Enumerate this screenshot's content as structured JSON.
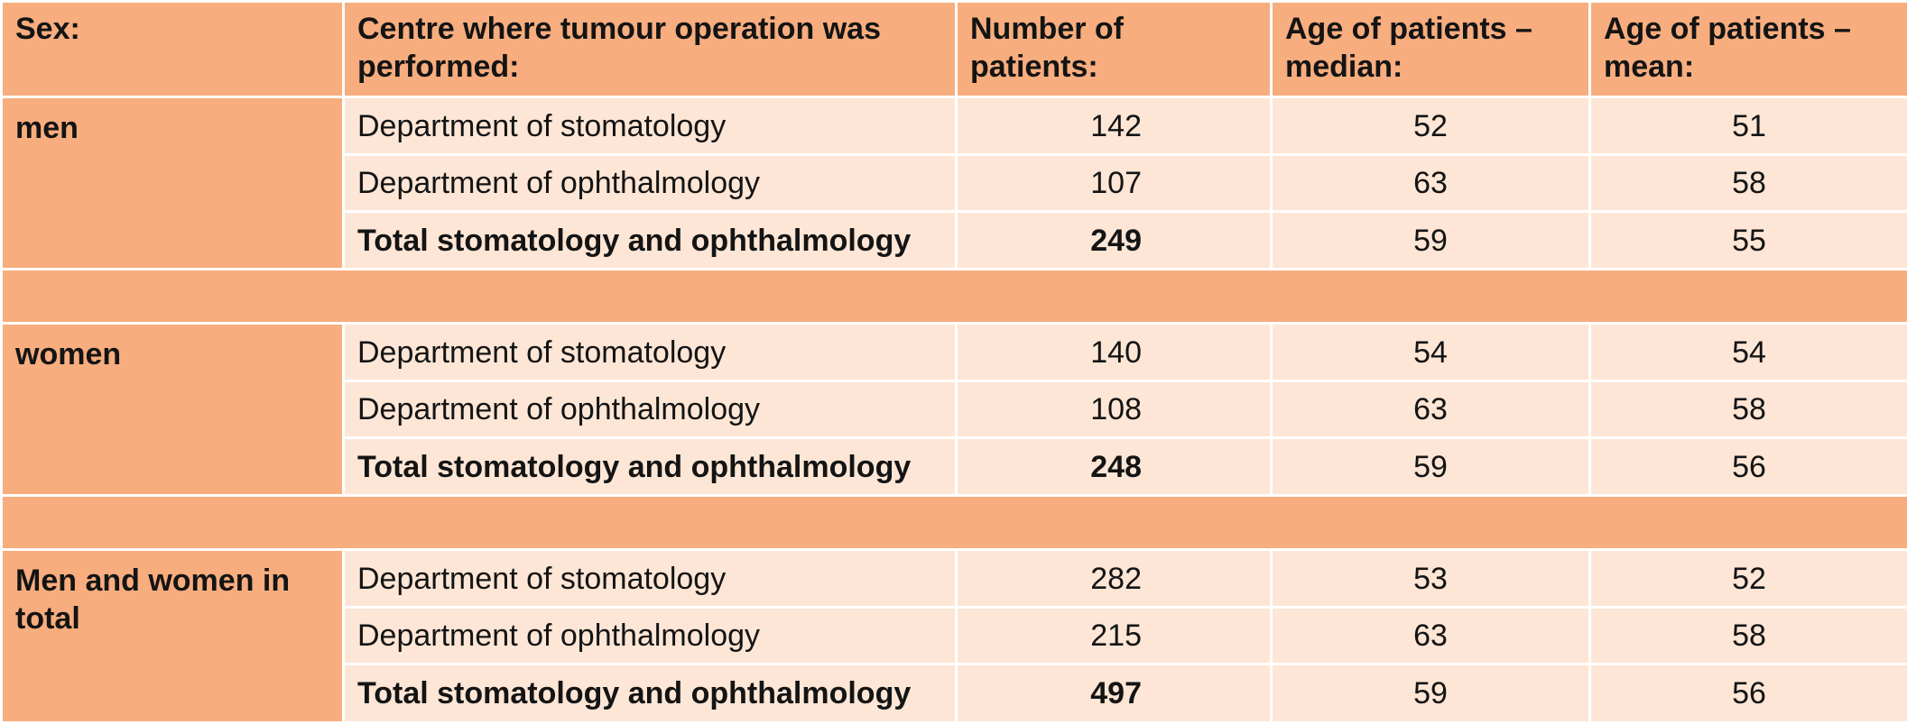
{
  "table": {
    "headers": [
      "Sex:",
      "Centre where tumour operation was performed:",
      "Number of patients:",
      "Age of patients – median:",
      "Age of patients – mean:"
    ],
    "groups": [
      {
        "sex": "men",
        "rows": [
          {
            "centre": "Department of stomatology",
            "number": "142",
            "median": "52",
            "mean": "51"
          },
          {
            "centre": "Department of ophthalmology",
            "number": "107",
            "median": "63",
            "mean": "58"
          },
          {
            "centre": "Total stomatology and ophthalmology",
            "number": "249",
            "median": "59",
            "mean": "55"
          }
        ]
      },
      {
        "sex": "women",
        "rows": [
          {
            "centre": "Department of stomatology",
            "number": "140",
            "median": "54",
            "mean": "54"
          },
          {
            "centre": "Department of ophthalmology",
            "number": "108",
            "median": "63",
            "mean": "58"
          },
          {
            "centre": "Total stomatology and ophthalmology",
            "number": "248",
            "median": "59",
            "mean": "56"
          }
        ]
      },
      {
        "sex": "Men and women in total",
        "rows": [
          {
            "centre": "Department of stomatology",
            "number": "282",
            "median": "53",
            "mean": "52"
          },
          {
            "centre": "Department of ophthalmology",
            "number": "215",
            "median": "63",
            "mean": "58"
          },
          {
            "centre": "Total stomatology and ophthalmology",
            "number": "497",
            "median": "59",
            "mean": "56"
          }
        ]
      }
    ]
  },
  "colors": {
    "header_fill": "#f7ad7e",
    "cell_fill": "#fde6d6",
    "border": "#ffffff",
    "text": "#141414"
  }
}
